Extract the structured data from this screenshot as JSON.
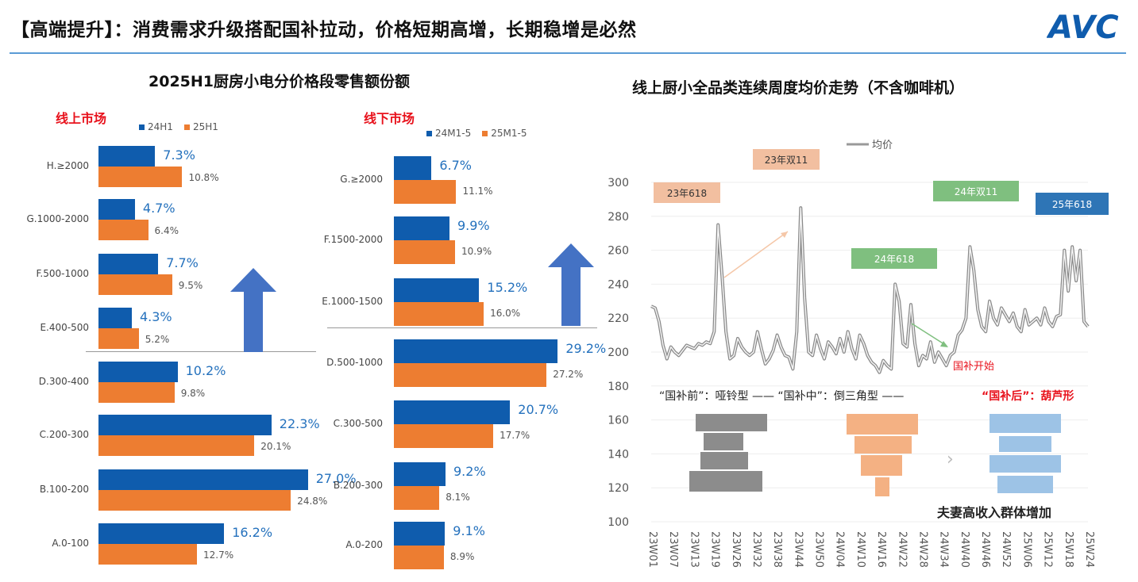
{
  "header": {
    "title": "【高端提升】：消费需求升级搭配国补拉动，价格短期高增，长期稳增是必然",
    "logo_text": "AVC"
  },
  "colors": {
    "blue": "#0f5cad",
    "orange": "#ed7d31",
    "accent_red": "#e8121c",
    "rule": "#5a9bd5"
  },
  "chart_data": [
    {
      "type": "bar",
      "orientation": "horizontal",
      "title": "2025H1厨房小电分价格段零售额份额",
      "subtitle": "线上市场",
      "legend": [
        "24H1",
        "25H1"
      ],
      "categories": [
        "H.≥2000",
        "G.1000-2000",
        "F.500-1000",
        "E.400-500",
        "D.300-400",
        "C.200-300",
        "B.100-200",
        "A.0-100"
      ],
      "series": [
        {
          "name": "24H1",
          "values": [
            7.3,
            4.7,
            7.7,
            4.3,
            10.2,
            22.3,
            27.0,
            16.2
          ],
          "labels": [
            "7.3%",
            "4.7%",
            "7.7%",
            "4.3%",
            "10.2%",
            "22.3%",
            "27.0%",
            "16.2%"
          ]
        },
        {
          "name": "25H1",
          "values": [
            10.8,
            6.4,
            9.5,
            5.2,
            9.8,
            20.1,
            24.8,
            12.7
          ],
          "labels": [
            "10.8%",
            "6.4%",
            "9.5%",
            "5.2%",
            "9.8%",
            "20.1%",
            "24.8%",
            "12.7%"
          ]
        }
      ],
      "xlim": [
        0,
        30
      ]
    },
    {
      "type": "bar",
      "orientation": "horizontal",
      "subtitle": "线下市场",
      "legend": [
        "24M1-5",
        "25M1-5"
      ],
      "categories": [
        "G.≥2000",
        "F.1500-2000",
        "E.1000-1500",
        "D.500-1000",
        "C.300-500",
        "B.200-300",
        "A.0-200"
      ],
      "series": [
        {
          "name": "24M1-5",
          "values": [
            6.7,
            9.9,
            15.2,
            29.2,
            20.7,
            9.2,
            9.1
          ],
          "labels": [
            "6.7%",
            "9.9%",
            "15.2%",
            "29.2%",
            "20.7%",
            "9.2%",
            "9.1%"
          ]
        },
        {
          "name": "25M1-5",
          "values": [
            11.1,
            10.9,
            16.0,
            27.2,
            17.7,
            8.1,
            8.9
          ],
          "labels": [
            "11.1%",
            "10.9%",
            "16.0%",
            "27.2%",
            "17.7%",
            "8.1%",
            "8.9%"
          ]
        }
      ],
      "xlim": [
        0,
        30
      ]
    },
    {
      "type": "line",
      "title": "线上厨小全品类连续周度均价走势（不含咖啡机）",
      "legend": [
        "均价"
      ],
      "ylim": [
        100,
        300
      ],
      "yticks": [
        "100",
        "120",
        "140",
        "160",
        "180",
        "200",
        "220",
        "240",
        "260",
        "280",
        "300"
      ],
      "xticks": [
        "23W01",
        "23W07",
        "23W13",
        "23W19",
        "23W26",
        "23W32",
        "23W38",
        "23W44",
        "23W50",
        "24W04",
        "24W10",
        "24W16",
        "24W22",
        "24W28",
        "24W34",
        "24W40",
        "24W46",
        "24W52",
        "25W06",
        "25W12",
        "25W18",
        "25W24"
      ],
      "series": [
        {
          "name": "均价",
          "values": [
            227,
            226,
            218,
            204,
            196,
            203,
            200,
            198,
            201,
            204,
            203,
            202,
            205,
            204,
            206,
            205,
            212,
            275,
            245,
            212,
            196,
            198,
            208,
            203,
            200,
            198,
            200,
            212,
            202,
            193,
            196,
            201,
            210,
            203,
            198,
            197,
            190,
            212,
            285,
            232,
            200,
            198,
            210,
            202,
            196,
            206,
            203,
            199,
            208,
            200,
            212,
            202,
            196,
            210,
            205,
            198,
            194,
            192,
            188,
            195,
            192,
            190,
            240,
            230,
            205,
            203,
            228,
            205,
            192,
            198,
            196,
            206,
            194,
            200,
            196,
            192,
            198,
            200,
            210,
            213,
            220,
            262,
            248,
            225,
            215,
            212,
            230,
            220,
            216,
            226,
            222,
            218,
            223,
            215,
            212,
            225,
            216,
            218,
            220,
            216,
            226,
            218,
            215,
            221,
            222,
            260,
            236,
            262,
            242,
            260,
            218,
            215
          ]
        }
      ],
      "annotations": [
        {
          "text": "23年618",
          "color": "#f2bfa0"
        },
        {
          "text": "23年双11",
          "color": "#f2bfa0"
        },
        {
          "text": "24年618",
          "color": "#7fbf7f"
        },
        {
          "text": "24年双11",
          "color": "#7fbf7f"
        },
        {
          "text": "25年618",
          "color": "#2e75b6"
        },
        {
          "text": "国补开始",
          "color": "#e8121c"
        }
      ],
      "caption": {
        "part1": "“国补前”：哑铃型 —— “国补中”：倒三角型 ——",
        "part2": "“国补后”：葫芦形"
      },
      "footnote": "夫妻高收入群体增加"
    }
  ]
}
